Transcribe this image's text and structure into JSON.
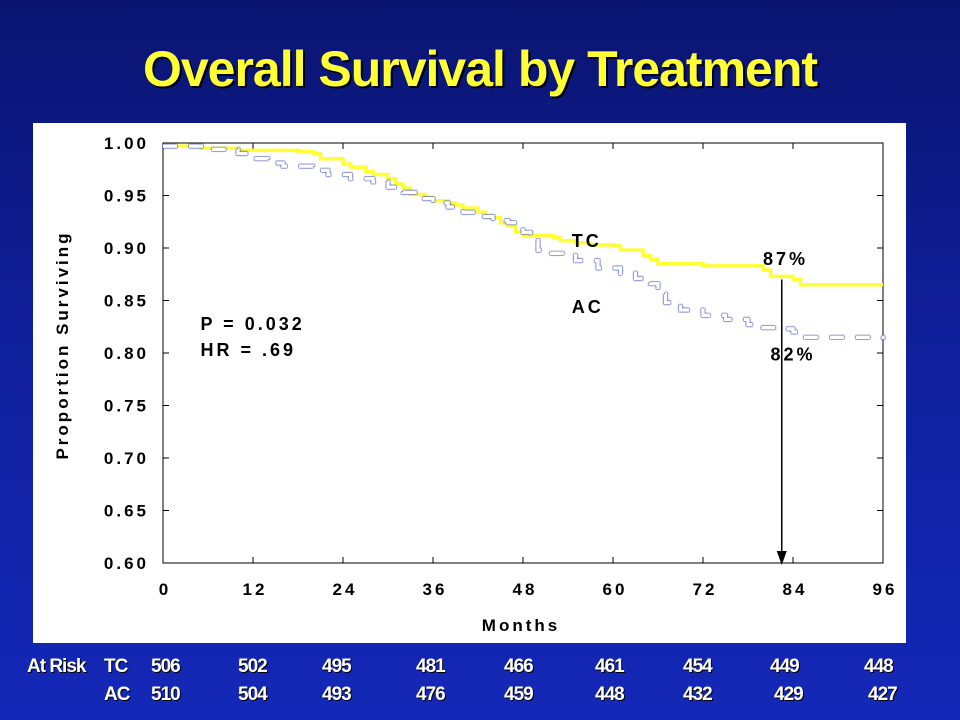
{
  "slide": {
    "title": "Overall Survival by Treatment"
  },
  "chart_data": {
    "type": "line",
    "xlabel": "Months",
    "ylabel": "Proportion Surviving",
    "xlim": [
      0,
      96
    ],
    "ylim": [
      0.6,
      1.0
    ],
    "x_ticks": [
      "0",
      "12",
      "24",
      "36",
      "48",
      "60",
      "72",
      "84",
      "96"
    ],
    "y_ticks": [
      "1.00",
      "0.95",
      "0.90",
      "0.85",
      "0.80",
      "0.75",
      "0.70",
      "0.65",
      "0.60"
    ],
    "series": [
      {
        "name": "TC",
        "color": "#ffff33",
        "style": "solid",
        "points": [
          [
            0,
            0.997
          ],
          [
            5,
            0.995
          ],
          [
            10,
            0.993
          ],
          [
            18,
            0.992
          ],
          [
            20,
            0.99
          ],
          [
            21,
            0.985
          ],
          [
            24,
            0.98
          ],
          [
            25,
            0.977
          ],
          [
            27,
            0.973
          ],
          [
            28,
            0.97
          ],
          [
            30,
            0.966
          ],
          [
            31,
            0.961
          ],
          [
            32,
            0.957
          ],
          [
            33,
            0.951
          ],
          [
            35,
            0.948
          ],
          [
            36,
            0.945
          ],
          [
            38,
            0.943
          ],
          [
            39,
            0.941
          ],
          [
            40,
            0.938
          ],
          [
            42,
            0.934
          ],
          [
            43,
            0.929
          ],
          [
            45,
            0.924
          ],
          [
            46,
            0.921
          ],
          [
            47,
            0.915
          ],
          [
            48,
            0.912
          ],
          [
            52,
            0.91
          ],
          [
            53,
            0.907
          ],
          [
            55,
            0.905
          ],
          [
            57,
            0.903
          ],
          [
            60,
            0.902
          ],
          [
            61,
            0.898
          ],
          [
            64,
            0.893
          ],
          [
            65,
            0.889
          ],
          [
            66,
            0.885
          ],
          [
            72,
            0.883
          ],
          [
            80,
            0.879
          ],
          [
            81,
            0.873
          ],
          [
            84,
            0.87
          ],
          [
            85,
            0.865
          ],
          [
            96,
            0.865
          ]
        ]
      },
      {
        "name": "AC",
        "color": "#ffffff",
        "style": "dashed",
        "points": [
          [
            0,
            0.997
          ],
          [
            6,
            0.994
          ],
          [
            10,
            0.99
          ],
          [
            12,
            0.985
          ],
          [
            14,
            0.981
          ],
          [
            16,
            0.978
          ],
          [
            20,
            0.974
          ],
          [
            22,
            0.97
          ],
          [
            25,
            0.966
          ],
          [
            28,
            0.963
          ],
          [
            30,
            0.958
          ],
          [
            32,
            0.953
          ],
          [
            34,
            0.947
          ],
          [
            36,
            0.943
          ],
          [
            38,
            0.939
          ],
          [
            40,
            0.934
          ],
          [
            42,
            0.93
          ],
          [
            44,
            0.926
          ],
          [
            46,
            0.924
          ],
          [
            48,
            0.915
          ],
          [
            49,
            0.907
          ],
          [
            50,
            0.898
          ],
          [
            51,
            0.895
          ],
          [
            55,
            0.888
          ],
          [
            58,
            0.881
          ],
          [
            61,
            0.876
          ],
          [
            63,
            0.871
          ],
          [
            65,
            0.866
          ],
          [
            66,
            0.856
          ],
          [
            67,
            0.848
          ],
          [
            69,
            0.841
          ],
          [
            72,
            0.836
          ],
          [
            75,
            0.832
          ],
          [
            78,
            0.827
          ],
          [
            80,
            0.824
          ],
          [
            83,
            0.823
          ],
          [
            84,
            0.82
          ],
          [
            85,
            0.815
          ],
          [
            96,
            0.813
          ]
        ]
      }
    ],
    "annotations": [
      {
        "id": "tc-label",
        "text": "TC",
        "x": 54.5,
        "y": 0.901
      },
      {
        "id": "ac-label",
        "text": "AC",
        "x": 54.5,
        "y": 0.838
      },
      {
        "id": "tc-pct",
        "text": "87%",
        "x": 80,
        "y": 0.884
      },
      {
        "id": "ac-pct",
        "text": "82%",
        "x": 81,
        "y": 0.793
      },
      {
        "id": "pvalue",
        "text": "P = 0.032",
        "x": 5,
        "y": 0.822
      },
      {
        "id": "hr",
        "text": "HR = .69",
        "x": 5,
        "y": 0.797
      }
    ],
    "reference_arrow": {
      "x": 82.5,
      "y_from": 0.87,
      "y_to": 0.6
    }
  },
  "at_risk": {
    "label": "At Risk",
    "rows": [
      {
        "group": "TC",
        "values": [
          "506",
          "502",
          "495",
          "481",
          "466",
          "461",
          "454",
          "449",
          "448"
        ]
      },
      {
        "group": "AC",
        "values": [
          "510",
          "504",
          "493",
          "476",
          "459",
          "448",
          "432",
          "429",
          "427"
        ]
      }
    ]
  }
}
